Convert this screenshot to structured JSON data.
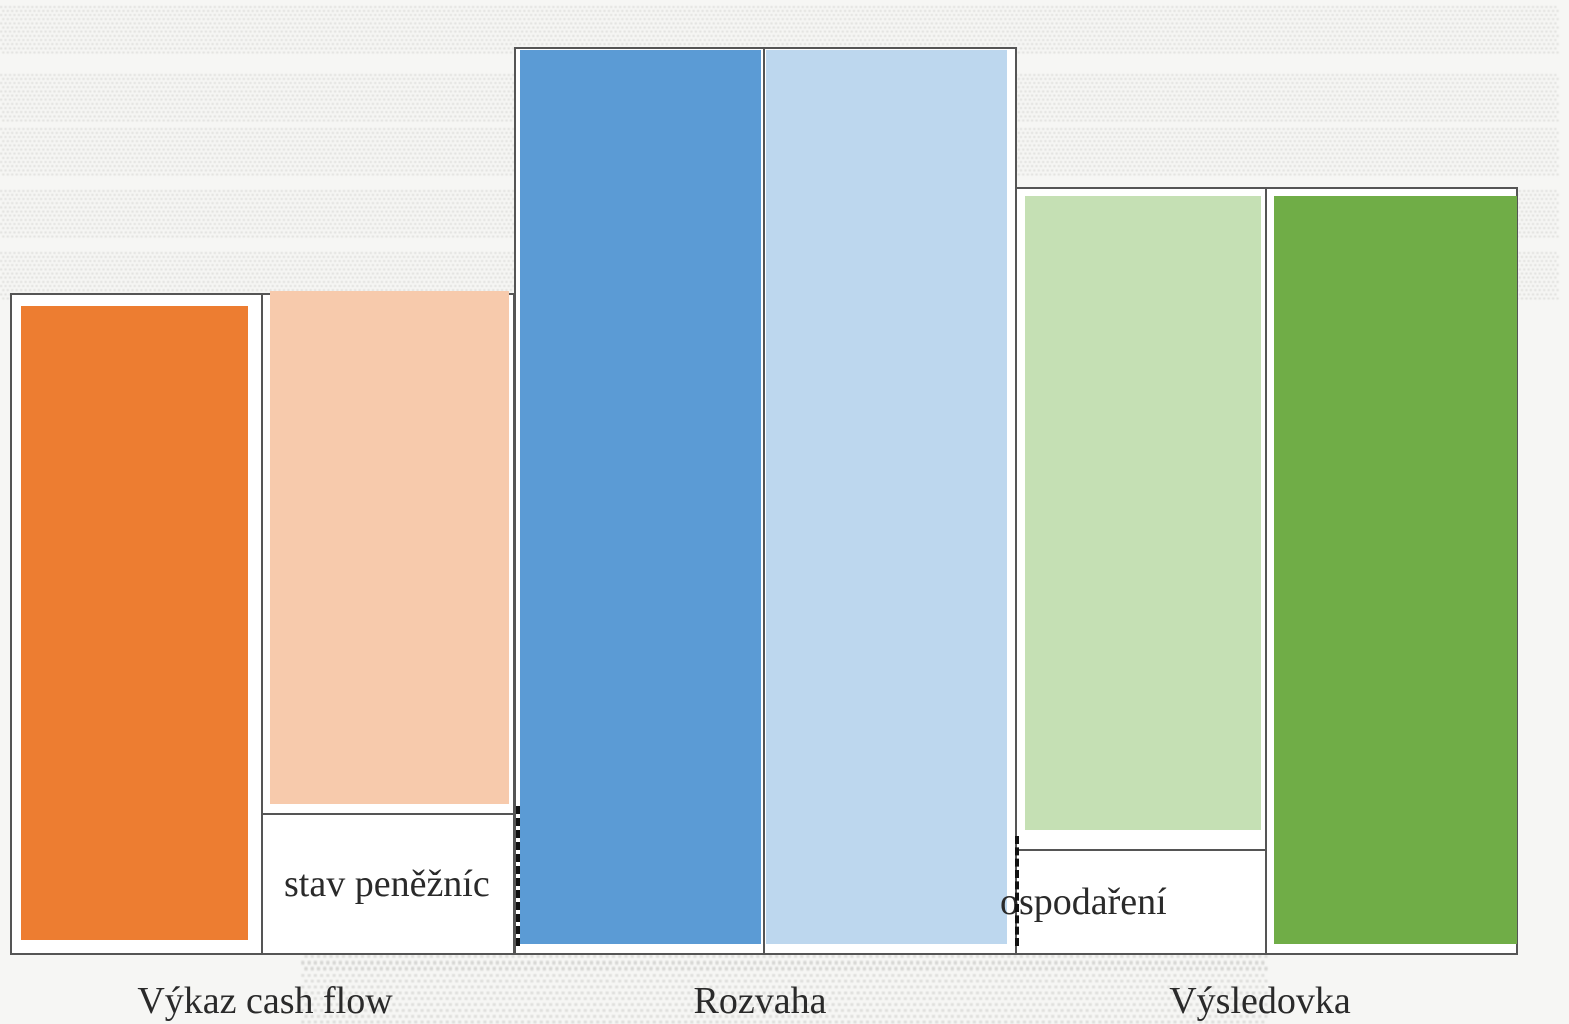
{
  "diagram": {
    "sections": [
      {
        "id": "cash-flow",
        "caption": "Výkaz cash flow",
        "inner_label": "stav peněžníc",
        "colors": {
          "dark": "#ed7d31",
          "light": "#f7caac"
        }
      },
      {
        "id": "rozvaha",
        "caption": "Rozvaha",
        "colors": {
          "dark": "#5b9bd5",
          "light": "#bdd7ee"
        }
      },
      {
        "id": "vysledovka",
        "caption": "Výsledovka",
        "inner_label": "ospodaření",
        "colors": {
          "dark": "#70ad47",
          "light": "#c5e0b4"
        }
      }
    ],
    "border_color": "#555555"
  }
}
